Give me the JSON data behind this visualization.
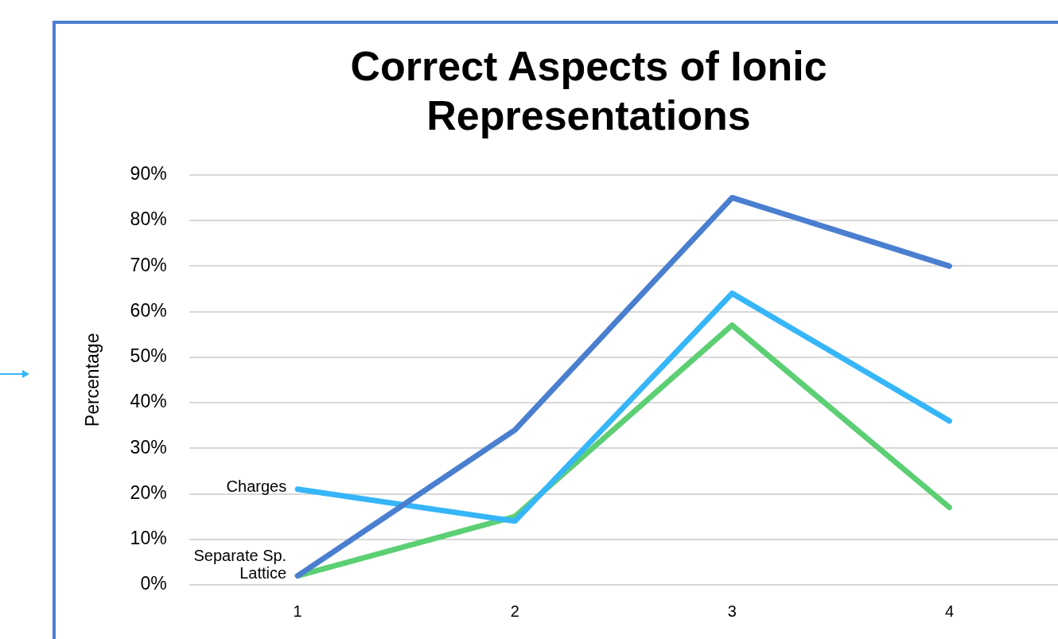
{
  "chart_data": {
    "type": "line",
    "title": "Correct Aspects of Ionic Representations",
    "ylabel": "Percentage",
    "categories": [
      "1",
      "2",
      "3",
      "4"
    ],
    "series": [
      {
        "name": "Separate Sp.",
        "color": "#4a7fd0",
        "values": [
          2,
          34,
          85,
          70
        ]
      },
      {
        "name": "Charges",
        "color": "#36b6f8",
        "values": [
          21,
          14,
          64,
          36
        ]
      },
      {
        "name": "Lattice",
        "color": "#5ccf74",
        "values": [
          2,
          15,
          57,
          17
        ]
      }
    ],
    "ylim": [
      0,
      90
    ],
    "yticks": [
      {
        "value": 0,
        "label": "0%"
      },
      {
        "value": 10,
        "label": "10%"
      },
      {
        "value": 20,
        "label": "20%"
      },
      {
        "value": 30,
        "label": "30%"
      },
      {
        "value": 40,
        "label": "40%"
      },
      {
        "value": 50,
        "label": "50%"
      },
      {
        "value": 60,
        "label": "60%"
      },
      {
        "value": 70,
        "label": "70%"
      },
      {
        "value": 80,
        "label": "80%"
      },
      {
        "value": 90,
        "label": "90%"
      }
    ],
    "grid": "y",
    "legend": false,
    "marker": "none",
    "line_style": "solid"
  }
}
